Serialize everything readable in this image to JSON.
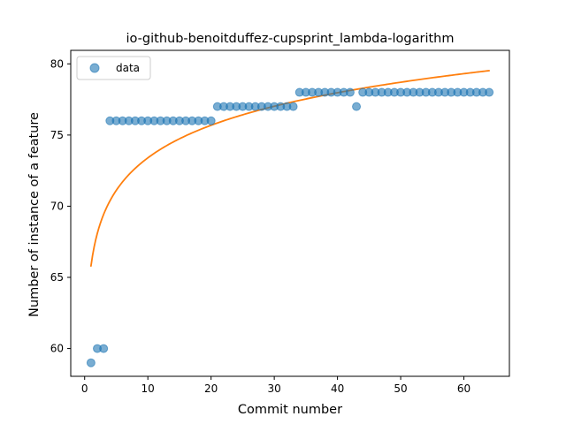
{
  "chart_data": {
    "type": "scatter",
    "title": "io-github-benoitduffez-cupsprint_lambda-logarithm",
    "xlabel": "Commit number",
    "ylabel": "Number of instance of a feature",
    "xlim": [
      -2.2,
      67.2
    ],
    "ylim": [
      58.05,
      80.95
    ],
    "xticks": [
      0,
      10,
      20,
      30,
      40,
      50,
      60
    ],
    "yticks": [
      60,
      65,
      70,
      75,
      80
    ],
    "grid": false,
    "legend": {
      "position": "upper-left",
      "entries": [
        "data"
      ]
    },
    "series": [
      {
        "name": "data",
        "kind": "scatter",
        "color": "#1f77b4",
        "x": [
          1,
          2,
          3,
          4,
          5,
          6,
          7,
          8,
          9,
          10,
          11,
          12,
          13,
          14,
          15,
          16,
          17,
          18,
          19,
          20,
          21,
          22,
          23,
          24,
          25,
          26,
          27,
          28,
          29,
          30,
          31,
          32,
          33,
          34,
          35,
          36,
          37,
          38,
          39,
          40,
          41,
          42,
          43,
          44,
          45,
          46,
          47,
          48,
          49,
          50,
          51,
          52,
          53,
          54,
          55,
          56,
          57,
          58,
          59,
          60,
          61,
          62,
          63,
          64
        ],
        "y": [
          59,
          60,
          60,
          76,
          76,
          76,
          76,
          76,
          76,
          76,
          76,
          76,
          76,
          76,
          76,
          76,
          76,
          76,
          76,
          76,
          77,
          77,
          77,
          77,
          77,
          77,
          77,
          77,
          77,
          77,
          77,
          77,
          77,
          78,
          78,
          78,
          78,
          78,
          78,
          78,
          78,
          78,
          77,
          78,
          78,
          78,
          78,
          78,
          78,
          78,
          78,
          78,
          78,
          78,
          78,
          78,
          78,
          78,
          78,
          78,
          78,
          78,
          78,
          78
        ]
      },
      {
        "kind": "line",
        "color": "#ff7f0e",
        "model": {
          "a": 65.8,
          "b": 3.3,
          "form": "a + b*ln(x)"
        },
        "x_range": [
          1,
          64
        ]
      }
    ]
  }
}
